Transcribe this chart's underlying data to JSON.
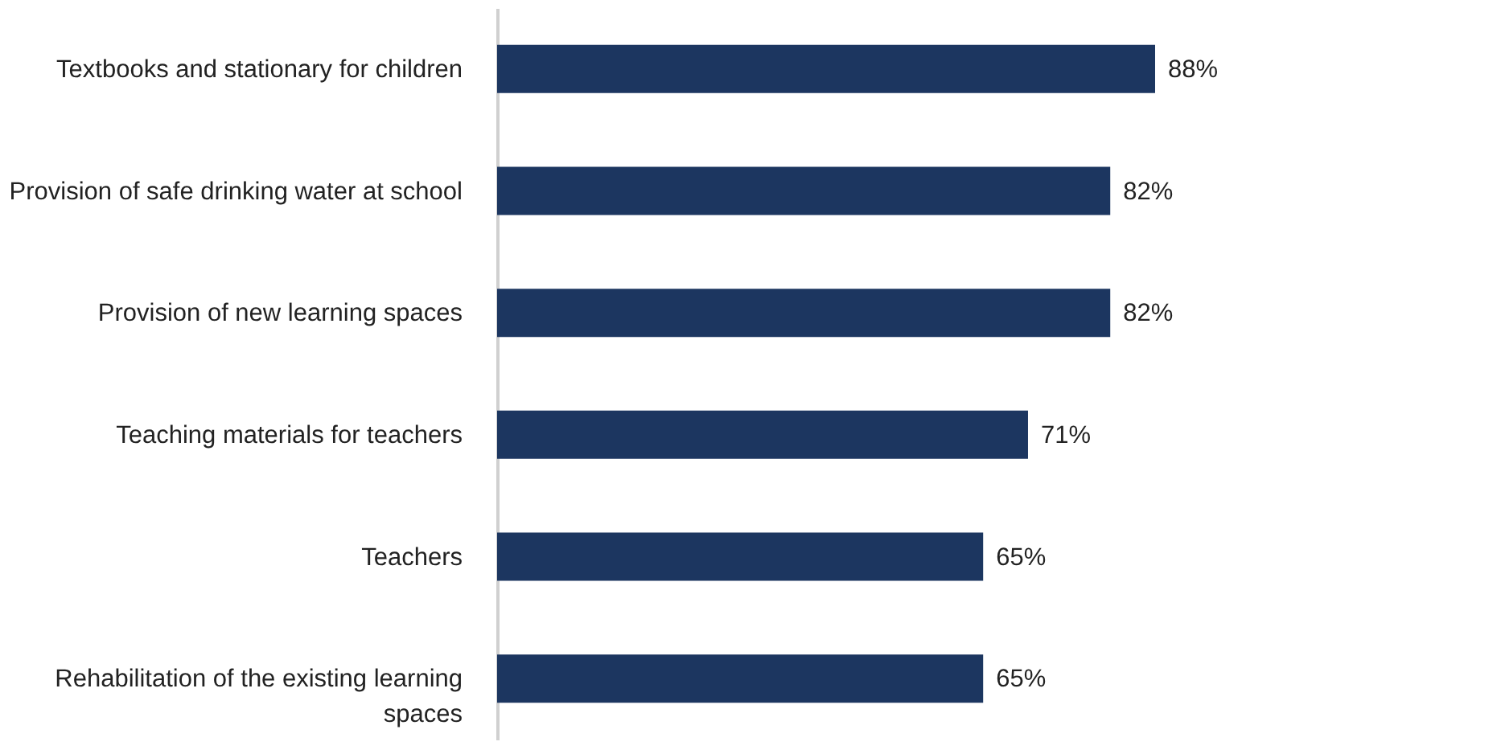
{
  "chart_data": {
    "type": "bar",
    "orientation": "horizontal",
    "categories": [
      "Textbooks and stationary for children",
      "Provision of safe drinking water at school",
      "Provision of new learning spaces",
      "Teaching materials for teachers",
      "Teachers",
      "Rehabilitation of the existing learning spaces"
    ],
    "values": [
      88,
      82,
      82,
      71,
      65,
      65
    ],
    "value_labels": [
      "88%",
      "82%",
      "82%",
      "71%",
      "65%",
      "65%"
    ],
    "color": "#1c3660",
    "grid": false
  }
}
